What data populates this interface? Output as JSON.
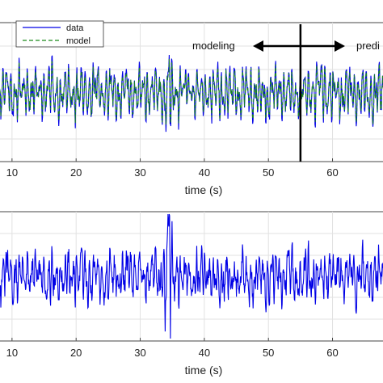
{
  "chart_data": [
    {
      "type": "line",
      "title": "",
      "xlabel": "time (s)",
      "ylabel": "",
      "xlim": [
        8,
        68
      ],
      "xticks": [
        10,
        20,
        30,
        40,
        50,
        60
      ],
      "xtick_labels": [
        "10",
        "20",
        "30",
        "40",
        "50",
        "60"
      ],
      "grid": true,
      "legend": {
        "placement": "top-left"
      },
      "split_time": 55,
      "annotations": [
        {
          "text": "modeling",
          "side": "left"
        },
        {
          "text": "predi",
          "side": "right"
        }
      ],
      "series": [
        {
          "name": "data",
          "color": "#0000e6",
          "style": "solid"
        },
        {
          "name": "model",
          "color": "#1a8a1a",
          "style": "dashed"
        }
      ]
    },
    {
      "type": "line",
      "title": "",
      "xlabel": "time (s)",
      "ylabel": "",
      "xlim": [
        8,
        68
      ],
      "xticks": [
        10,
        20,
        30,
        40,
        50,
        60
      ],
      "xtick_labels": [
        "10",
        "20",
        "30",
        "40",
        "50",
        "60"
      ],
      "grid": true,
      "series": [
        {
          "name": "",
          "color": "#0000e6",
          "style": "solid"
        }
      ]
    }
  ]
}
